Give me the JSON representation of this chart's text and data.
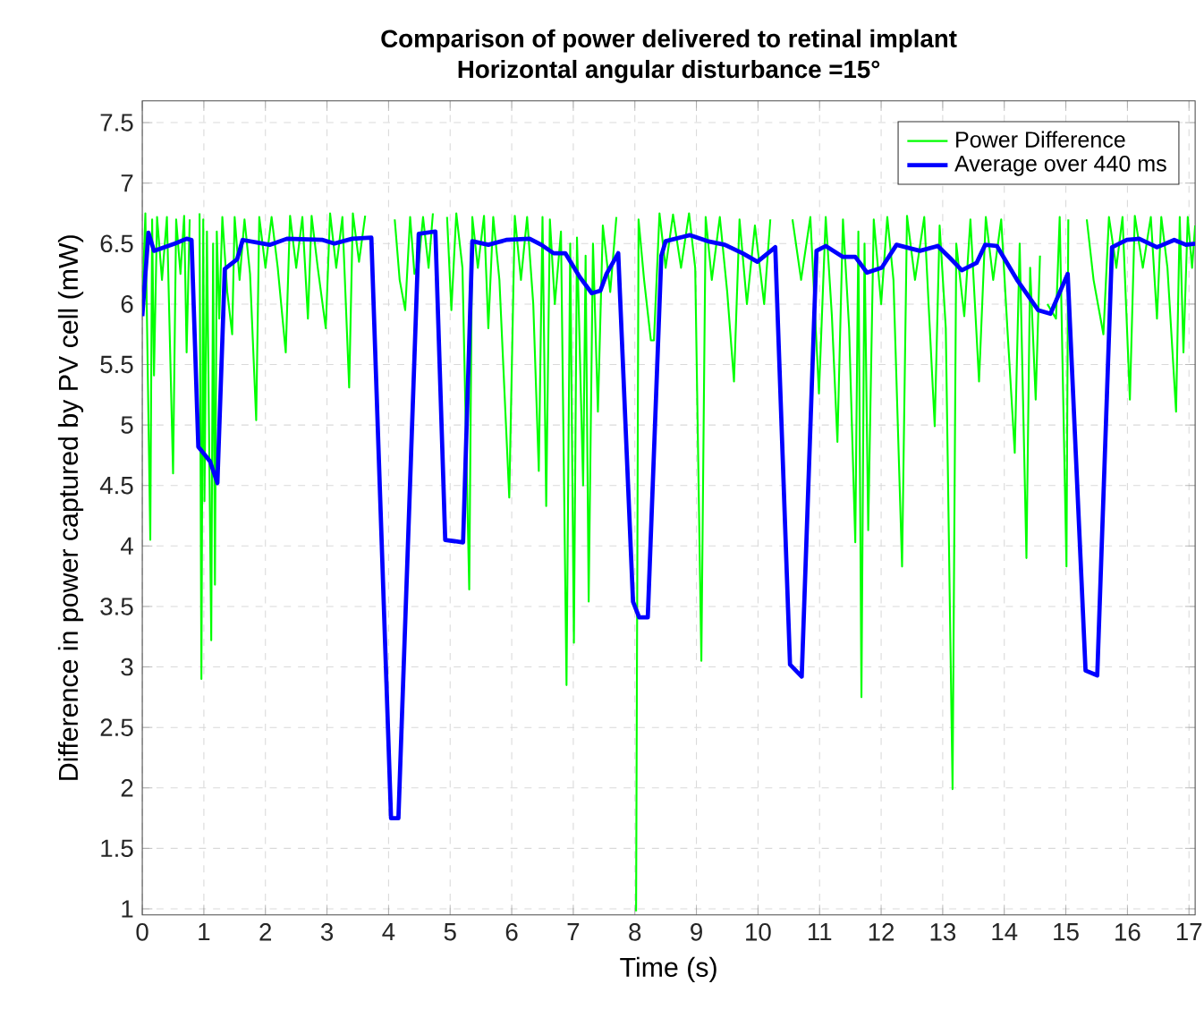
{
  "chart_data": {
    "type": "line",
    "title": "Comparison of power delivered to retinal implant",
    "subtitle": "Horizontal angular disturbance =15°",
    "xlabel": "Time (s)",
    "ylabel": "Difference in power captured by PV cell (mW)",
    "xlim": [
      0,
      17.1
    ],
    "ylim": [
      0.95,
      7.68
    ],
    "xticks": [
      0,
      1,
      2,
      3,
      4,
      5,
      6,
      7,
      8,
      9,
      10,
      11,
      12,
      13,
      14,
      15,
      16,
      17
    ],
    "yticks": [
      1,
      1.5,
      2,
      2.5,
      3,
      3.5,
      4,
      4.5,
      5,
      5.5,
      6,
      6.5,
      7,
      7.5
    ],
    "grid": true,
    "legend": "top right",
    "marker": "none",
    "line_style": "solid",
    "series": [
      {
        "name": "Power Difference",
        "color": "#00ff00",
        "x": [
          0,
          0.05,
          0.13,
          0.16,
          0.19,
          0.24,
          0.32,
          0.4,
          0.5,
          0.55,
          0.62,
          0.68,
          0.72,
          0.77,
          0.8,
          0.85,
          0.91,
          0.93,
          0.96,
          0.99,
          1.01,
          1.05,
          1.12,
          1.15,
          1.18,
          1.21,
          1.25,
          1.3,
          1.38,
          1.46,
          1.5,
          1.58,
          1.66,
          1.75,
          1.85,
          1.9,
          2.0,
          2.1,
          2.2,
          2.33,
          2.4,
          2.5,
          2.6,
          2.69,
          2.75,
          2.85,
          2.98,
          3.05,
          3.15,
          3.25,
          3.36,
          3.42,
          3.52,
          3.62,
          3.72,
          3.88,
          4.04,
          4.1,
          4.18,
          4.27,
          4.35,
          4.42,
          4.49,
          4.56,
          4.65,
          4.72,
          4.76,
          4.84,
          4.92,
          4.95,
          5.02,
          5.1,
          5.2,
          5.31,
          5.36,
          5.45,
          5.55,
          5.62,
          5.7,
          5.8,
          5.96,
          6.05,
          6.15,
          6.25,
          6.35,
          6.44,
          6.5,
          6.56,
          6.62,
          6.7,
          6.8,
          6.89,
          6.95,
          7.01,
          7.06,
          7.16,
          7.2,
          7.25,
          7.32,
          7.4,
          7.48,
          7.6,
          7.7,
          7.78,
          7.88,
          7.97,
          8.02,
          8.06,
          8.15,
          8.26,
          8.31,
          8.4,
          8.5,
          8.62,
          8.75,
          8.88,
          8.98,
          9.08,
          9.15,
          9.25,
          9.38,
          9.5,
          9.61,
          9.7,
          9.82,
          9.95,
          10.1,
          10.2,
          10.28,
          10.4,
          10.52,
          10.56,
          10.7,
          10.85,
          10.99,
          11.1,
          11.2,
          11.29,
          11.38,
          11.48,
          11.58,
          11.63,
          11.68,
          11.73,
          11.79,
          11.88,
          12.0,
          12.1,
          12.2,
          12.34,
          12.42,
          12.55,
          12.7,
          12.87,
          12.95,
          13.05,
          13.16,
          13.22,
          13.35,
          13.45,
          13.59,
          13.7,
          13.82,
          13.95,
          14.05,
          14.17,
          14.25,
          14.36,
          14.42,
          14.51,
          14.58,
          14.65,
          14.7,
          14.84,
          14.9,
          15.01,
          15.04,
          15.06,
          15.18,
          15.3,
          15.34,
          15.45,
          15.61,
          15.7,
          15.82,
          15.92,
          16.04,
          16.12,
          16.25,
          16.38,
          16.48,
          16.55,
          16.65,
          16.79,
          16.85,
          16.91,
          16.98,
          17.05,
          17.1
        ],
        "values": [
          6.0,
          6.75,
          4.05,
          6.7,
          5.41,
          6.72,
          6.2,
          6.72,
          4.6,
          6.7,
          6.25,
          6.73,
          5.6,
          6.7,
          null,
          null,
          null,
          6.75,
          2.9,
          6.7,
          4.37,
          6.6,
          3.22,
          6.5,
          3.68,
          6.6,
          5.88,
          6.72,
          6.1,
          5.75,
          6.72,
          6.2,
          6.7,
          6.25,
          5.04,
          6.72,
          6.3,
          6.72,
          6.3,
          5.6,
          6.73,
          6.3,
          6.72,
          5.88,
          6.73,
          6.3,
          5.8,
          6.75,
          6.3,
          6.72,
          5.31,
          6.75,
          6.35,
          6.73,
          null,
          null,
          null,
          6.7,
          6.2,
          5.95,
          6.72,
          6.25,
          6.34,
          6.72,
          6.3,
          6.75,
          null,
          null,
          null,
          6.72,
          5.95,
          6.75,
          6.3,
          3.64,
          6.72,
          6.3,
          6.73,
          5.8,
          6.72,
          6.2,
          4.4,
          6.73,
          6.2,
          6.72,
          6.0,
          4.62,
          6.72,
          4.33,
          6.7,
          6.0,
          6.6,
          2.85,
          6.5,
          3.2,
          6.55,
          4.5,
          6.4,
          3.54,
          6.5,
          5.11,
          6.65,
          6.1,
          6.72,
          null,
          null,
          null,
          0.98,
          6.7,
          6.2,
          5.7,
          5.7,
          6.75,
          6.3,
          6.74,
          6.3,
          6.75,
          6.3,
          3.05,
          6.72,
          6.2,
          6.72,
          6.1,
          5.36,
          6.7,
          6.0,
          6.65,
          6.0,
          6.7,
          null,
          null,
          null,
          6.7,
          6.2,
          6.72,
          5.26,
          6.72,
          5.9,
          4.86,
          6.7,
          5.8,
          4.03,
          6.6,
          2.75,
          6.5,
          4.13,
          6.7,
          6.0,
          6.72,
          6.2,
          3.83,
          6.73,
          6.2,
          6.72,
          4.99,
          6.65,
          5.8,
          1.99,
          6.5,
          5.9,
          6.7,
          5.36,
          6.72,
          6.2,
          6.7,
          5.8,
          4.77,
          6.5,
          3.9,
          6.3,
          5.21,
          6.4,
          null,
          6.0,
          5.88,
          6.72,
          3.83,
          6.7,
          null,
          null,
          null,
          6.7,
          6.2,
          5.75,
          6.72,
          6.3,
          6.72,
          5.21,
          6.73,
          6.3,
          6.72,
          5.88,
          6.72,
          6.3,
          5.11,
          6.72,
          5.6,
          6.72,
          6.3,
          6.65
        ]
      },
      {
        "name": "Average over 440 ms",
        "color": "#0000ff",
        "x": [
          0,
          0.1,
          0.19,
          0.53,
          0.72,
          0.8,
          0.91,
          1.1,
          1.22,
          1.34,
          1.54,
          1.63,
          2.07,
          2.35,
          2.93,
          3.12,
          3.41,
          3.72,
          4.04,
          4.16,
          4.49,
          4.76,
          4.92,
          5.21,
          5.36,
          5.62,
          5.91,
          6.29,
          6.48,
          6.68,
          6.87,
          7.11,
          7.3,
          7.44,
          7.54,
          7.73,
          7.97,
          8.07,
          8.21,
          8.43,
          8.5,
          8.89,
          9.18,
          9.46,
          9.75,
          9.99,
          10.28,
          10.52,
          10.71,
          10.95,
          11.1,
          11.38,
          11.58,
          11.77,
          12.01,
          12.25,
          12.63,
          12.92,
          13.12,
          13.31,
          13.55,
          13.69,
          13.88,
          14.22,
          14.55,
          14.75,
          15.03,
          15.32,
          15.51,
          15.75,
          15.99,
          16.19,
          16.48,
          16.76,
          16.95,
          17.1
        ],
        "values": [
          5.9,
          6.59,
          6.44,
          6.5,
          6.54,
          6.53,
          4.82,
          4.7,
          4.52,
          6.29,
          6.37,
          6.53,
          6.49,
          6.54,
          6.53,
          6.5,
          6.54,
          6.55,
          1.75,
          1.75,
          6.58,
          6.6,
          4.05,
          4.03,
          6.52,
          6.49,
          6.53,
          6.54,
          6.49,
          6.42,
          6.42,
          6.22,
          6.09,
          6.11,
          6.25,
          6.42,
          3.54,
          3.41,
          3.41,
          6.4,
          6.52,
          6.57,
          6.52,
          6.49,
          6.42,
          6.35,
          6.47,
          3.02,
          2.92,
          6.44,
          6.48,
          6.39,
          6.39,
          6.26,
          6.3,
          6.49,
          6.44,
          6.48,
          6.38,
          6.28,
          6.34,
          6.49,
          6.48,
          6.19,
          5.95,
          5.92,
          6.25,
          2.97,
          2.93,
          6.47,
          6.53,
          6.54,
          6.47,
          6.53,
          6.49,
          6.5
        ]
      }
    ]
  }
}
